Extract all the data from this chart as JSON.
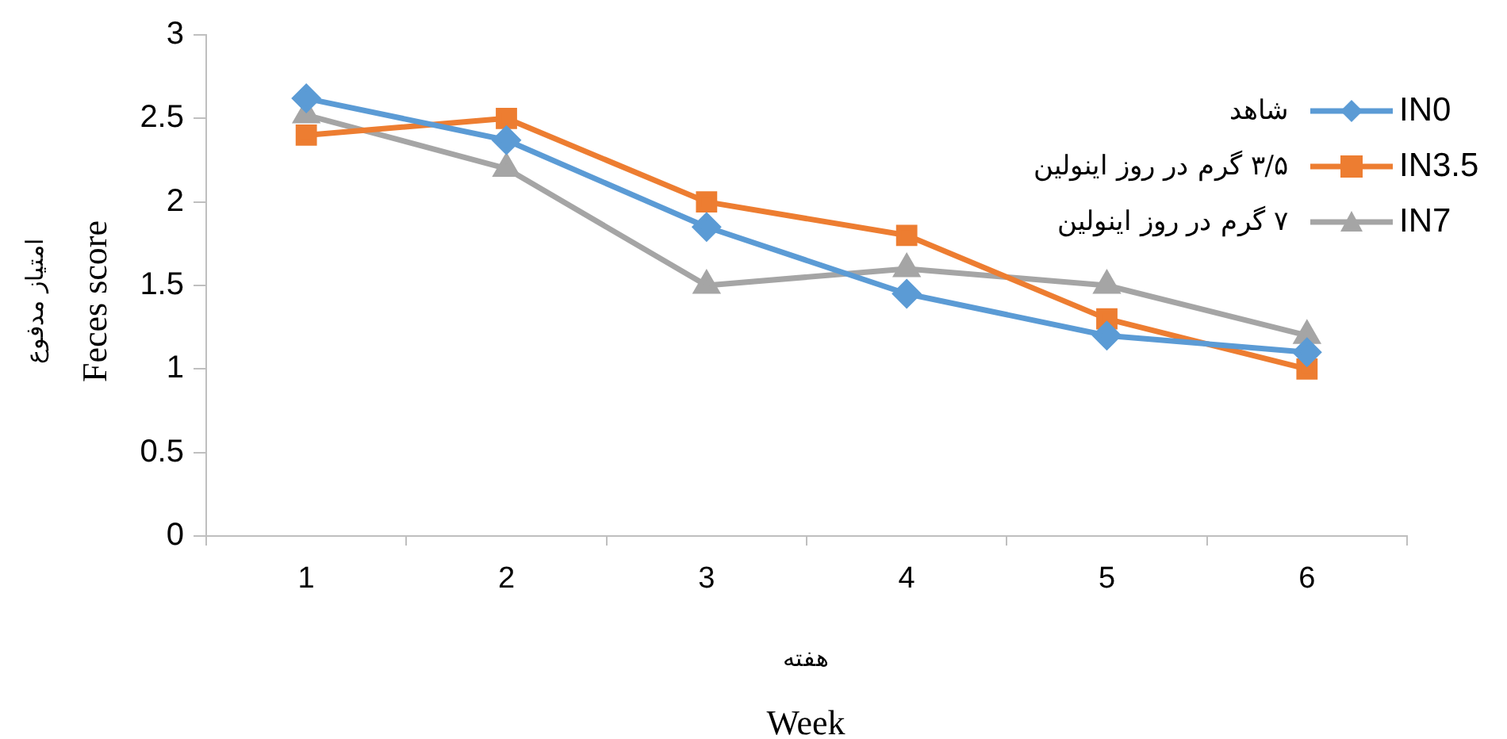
{
  "chart_data": {
    "type": "line",
    "xlabel": "Week",
    "ylabel": "Feces score",
    "categories": [
      "1",
      "2",
      "3",
      "4",
      "5",
      "6"
    ],
    "series": [
      {
        "name": "IN0",
        "color": "#5b9bd5",
        "marker": "diamond",
        "values": [
          2.62,
          2.37,
          1.85,
          1.45,
          1.2,
          1.1
        ]
      },
      {
        "name": "IN3.5",
        "color": "#ed7d31",
        "marker": "square",
        "values": [
          2.4,
          2.5,
          2.0,
          1.8,
          1.3,
          1.0
        ]
      },
      {
        "name": "IN7",
        "color": "#a5a5a5",
        "marker": "triangle",
        "values": [
          2.52,
          2.2,
          1.5,
          1.6,
          1.5,
          1.2
        ]
      }
    ],
    "ylim": [
      0,
      3
    ],
    "yticks": [
      0,
      0.5,
      1,
      1.5,
      2,
      2.5,
      3
    ],
    "grid": false,
    "legend": "top right",
    "line_style": "solid",
    "annotations": [
      "شاهد",
      "۳/۵ گرم در روز اینولین",
      "۷ گرم در روز اینولین",
      "امتیاز مدفوع",
      "هفته"
    ]
  }
}
